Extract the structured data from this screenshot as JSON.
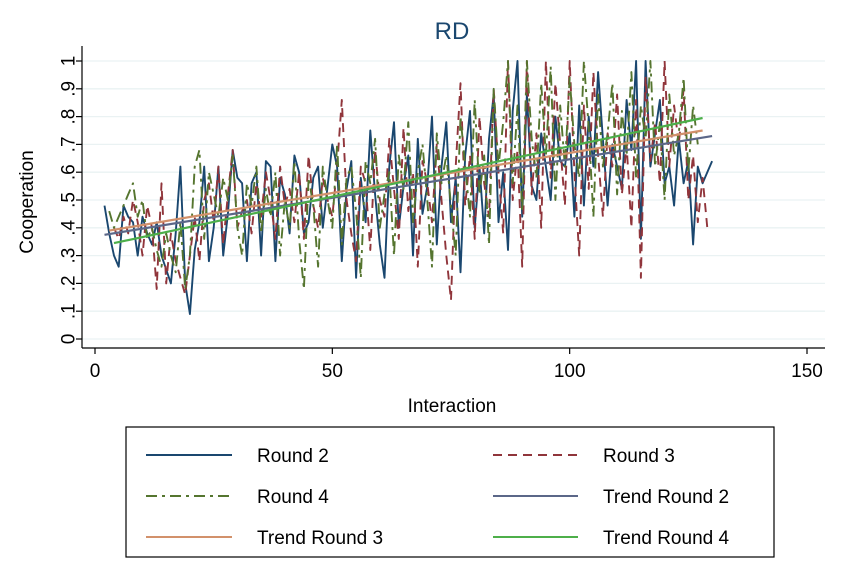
{
  "chart_data": {
    "type": "line",
    "title": "RD",
    "xlabel": "Interaction",
    "ylabel": "Cooperation",
    "xlim": [
      0,
      150
    ],
    "ylim": [
      0,
      1
    ],
    "x_ticks": [
      "0",
      "50",
      "100",
      "150"
    ],
    "y_ticks": [
      "0",
      ".1",
      ".2",
      ".3",
      ".4",
      ".5",
      ".6",
      ".7",
      ".8",
      ".9",
      "1"
    ],
    "grid": true,
    "legend_position": "bottom",
    "series": [
      {
        "name": "Round 2",
        "color": "#1a476f",
        "style": "solid",
        "x": [
          2,
          3,
          4,
          5,
          6,
          7,
          8,
          9,
          10,
          11,
          12,
          13,
          14,
          15,
          16,
          17,
          18,
          19,
          20,
          21,
          22,
          23,
          24,
          25,
          26,
          27,
          28,
          29,
          30,
          31,
          32,
          33,
          34,
          35,
          36,
          37,
          38,
          39,
          40,
          41,
          42,
          43,
          44,
          45,
          46,
          47,
          48,
          49,
          50,
          51,
          52,
          53,
          54,
          55,
          56,
          57,
          58,
          59,
          60,
          61,
          62,
          63,
          64,
          65,
          66,
          67,
          68,
          69,
          70,
          71,
          72,
          73,
          74,
          75,
          76,
          77,
          78,
          79,
          80,
          81,
          82,
          83,
          84,
          85,
          86,
          87,
          88,
          89,
          90,
          91,
          92,
          93,
          94,
          95,
          96,
          97,
          98,
          99,
          100,
          101,
          102,
          103,
          104,
          105,
          106,
          107,
          108,
          109,
          110,
          111,
          112,
          113,
          114,
          115,
          116,
          117,
          118,
          119,
          120,
          121,
          122,
          123,
          124,
          125,
          126,
          127,
          128,
          129,
          130
        ],
        "values": [
          0.48,
          0.38,
          0.3,
          0.26,
          0.48,
          0.44,
          0.42,
          0.3,
          0.44,
          0.38,
          0.34,
          0.42,
          0.3,
          0.25,
          0.2,
          0.38,
          0.62,
          0.2,
          0.09,
          0.32,
          0.42,
          0.62,
          0.28,
          0.4,
          0.62,
          0.3,
          0.45,
          0.68,
          0.58,
          0.56,
          0.28,
          0.56,
          0.6,
          0.3,
          0.64,
          0.62,
          0.28,
          0.58,
          0.52,
          0.38,
          0.66,
          0.6,
          0.38,
          0.42,
          0.58,
          0.62,
          0.4,
          0.55,
          0.7,
          0.62,
          0.28,
          0.54,
          0.64,
          0.22,
          0.58,
          0.42,
          0.75,
          0.52,
          0.34,
          0.22,
          0.62,
          0.78,
          0.4,
          0.55,
          0.66,
          0.3,
          0.72,
          0.45,
          0.55,
          0.8,
          0.34,
          0.62,
          0.78,
          0.42,
          0.58,
          0.24,
          0.66,
          0.82,
          0.4,
          0.62,
          0.38,
          0.72,
          0.88,
          0.42,
          0.6,
          0.32,
          0.82,
          1.0,
          0.44,
          0.88,
          0.55,
          0.5,
          0.74,
          0.62,
          0.5,
          0.8,
          0.64,
          0.62,
          0.74,
          0.44,
          0.84,
          0.48,
          0.8,
          0.62,
          0.96,
          0.72,
          0.48,
          0.7,
          0.62,
          0.54,
          0.86,
          0.68,
          1.0,
          0.36,
          1.0,
          0.62,
          0.74,
          0.86,
          0.56,
          0.62,
          0.48,
          0.72,
          0.56,
          0.64,
          0.34,
          0.62,
          0.56,
          0.6,
          0.64
        ]
      },
      {
        "name": "Round 3",
        "color": "#90353b",
        "style": "dash",
        "x": [
          4,
          5,
          6,
          7,
          8,
          9,
          10,
          11,
          12,
          13,
          14,
          15,
          16,
          17,
          18,
          19,
          20,
          21,
          22,
          23,
          24,
          25,
          26,
          27,
          28,
          29,
          30,
          31,
          32,
          33,
          34,
          35,
          36,
          37,
          38,
          39,
          40,
          41,
          42,
          43,
          44,
          45,
          46,
          47,
          48,
          49,
          50,
          51,
          52,
          53,
          54,
          55,
          56,
          57,
          58,
          59,
          60,
          61,
          62,
          63,
          64,
          65,
          66,
          67,
          68,
          69,
          70,
          71,
          72,
          73,
          74,
          75,
          76,
          77,
          78,
          79,
          80,
          81,
          82,
          83,
          84,
          85,
          86,
          87,
          88,
          89,
          90,
          91,
          92,
          93,
          94,
          95,
          96,
          97,
          98,
          99,
          100,
          101,
          102,
          103,
          104,
          105,
          106,
          107,
          108,
          109,
          110,
          111,
          112,
          113,
          114,
          115,
          116,
          117,
          118,
          119,
          120,
          121,
          122,
          123,
          124,
          125,
          126,
          127,
          128,
          129
        ],
        "values": [
          0.4,
          0.36,
          0.44,
          0.38,
          0.5,
          0.42,
          0.3,
          0.48,
          0.4,
          0.18,
          0.56,
          0.2,
          0.38,
          0.28,
          0.22,
          0.16,
          0.3,
          0.44,
          0.28,
          0.5,
          0.56,
          0.42,
          0.62,
          0.34,
          0.52,
          0.68,
          0.4,
          0.46,
          0.5,
          0.38,
          0.56,
          0.44,
          0.6,
          0.5,
          0.36,
          0.62,
          0.48,
          0.54,
          0.42,
          0.6,
          0.36,
          0.66,
          0.48,
          0.4,
          0.58,
          0.5,
          0.44,
          0.62,
          0.86,
          0.5,
          0.38,
          0.28,
          0.62,
          0.56,
          0.32,
          0.68,
          0.5,
          0.44,
          0.72,
          0.54,
          0.36,
          0.76,
          0.46,
          0.6,
          0.26,
          0.64,
          0.56,
          0.42,
          0.7,
          0.5,
          0.3,
          0.14,
          0.62,
          0.92,
          0.48,
          0.66,
          0.36,
          0.8,
          0.56,
          0.44,
          0.9,
          0.6,
          0.38,
          1.0,
          0.5,
          0.68,
          0.26,
          1.0,
          0.52,
          0.74,
          0.4,
          1.0,
          0.58,
          0.92,
          0.7,
          0.48,
          1.0,
          0.6,
          0.3,
          0.84,
          0.54,
          0.96,
          0.66,
          0.44,
          0.74,
          0.62,
          0.88,
          0.52,
          0.7,
          0.4,
          0.86,
          0.22,
          0.94,
          0.64,
          0.78,
          0.56,
          1.0,
          0.62,
          0.84,
          0.7,
          0.9,
          0.5,
          0.66,
          0.42,
          0.58,
          0.4
        ]
      },
      {
        "name": "Round 4",
        "color": "#55752f",
        "style": "dashdot",
        "x": [
          3,
          4,
          5,
          6,
          7,
          8,
          9,
          10,
          11,
          12,
          13,
          14,
          15,
          16,
          17,
          18,
          19,
          20,
          21,
          22,
          23,
          24,
          25,
          26,
          27,
          28,
          29,
          30,
          31,
          32,
          33,
          34,
          35,
          36,
          37,
          38,
          39,
          40,
          41,
          42,
          43,
          44,
          45,
          46,
          47,
          48,
          49,
          50,
          51,
          52,
          53,
          54,
          55,
          56,
          57,
          58,
          59,
          60,
          61,
          62,
          63,
          64,
          65,
          66,
          67,
          68,
          69,
          70,
          71,
          72,
          73,
          74,
          75,
          76,
          77,
          78,
          79,
          80,
          81,
          82,
          83,
          84,
          85,
          86,
          87,
          88,
          89,
          90,
          91,
          92,
          93,
          94,
          95,
          96,
          97,
          98,
          99,
          100,
          101,
          102,
          103,
          104,
          105,
          106,
          107,
          108,
          109,
          110,
          111,
          112,
          113,
          114,
          115,
          116,
          117,
          118,
          119,
          120,
          121,
          122,
          123,
          124,
          125,
          126,
          127
        ],
        "values": [
          0.46,
          0.4,
          0.44,
          0.48,
          0.52,
          0.56,
          0.44,
          0.5,
          0.36,
          0.4,
          0.32,
          0.26,
          0.38,
          0.3,
          0.24,
          0.42,
          0.18,
          0.3,
          0.62,
          0.68,
          0.36,
          0.6,
          0.52,
          0.44,
          0.58,
          0.5,
          0.66,
          0.4,
          0.3,
          0.56,
          0.48,
          0.62,
          0.38,
          0.54,
          0.44,
          0.6,
          0.3,
          0.5,
          0.4,
          0.64,
          0.36,
          0.18,
          0.58,
          0.48,
          0.26,
          0.62,
          0.5,
          0.4,
          0.7,
          0.34,
          0.58,
          0.62,
          0.46,
          0.22,
          0.64,
          0.56,
          0.72,
          0.4,
          0.52,
          0.6,
          0.3,
          0.66,
          0.54,
          0.78,
          0.42,
          0.6,
          0.7,
          0.5,
          0.26,
          0.74,
          0.56,
          0.66,
          0.48,
          0.3,
          0.8,
          0.62,
          0.44,
          0.86,
          0.52,
          0.66,
          0.34,
          0.9,
          0.62,
          0.78,
          1.0,
          0.56,
          0.84,
          0.46,
          1.0,
          0.72,
          0.58,
          0.92,
          0.66,
          0.98,
          0.5,
          0.84,
          0.62,
          0.94,
          0.7,
          0.58,
          1.0,
          0.76,
          0.44,
          0.88,
          0.62,
          0.74,
          0.92,
          0.52,
          0.82,
          0.66,
          0.96,
          0.58,
          0.84,
          0.72,
          1.0,
          0.62,
          0.78,
          0.5,
          0.88,
          0.66,
          0.74,
          0.94,
          0.6,
          0.84,
          0.7
        ]
      },
      {
        "name": "Trend Round 2",
        "color": "#5b6788",
        "style": "solid",
        "x": [
          2,
          130
        ],
        "values": [
          0.375,
          0.73
        ]
      },
      {
        "name": "Trend Round 3",
        "color": "#d2916b",
        "style": "solid",
        "x": [
          3,
          128
        ],
        "values": [
          0.39,
          0.75
        ]
      },
      {
        "name": "Trend Round 4",
        "color": "#4daf4a",
        "style": "solid",
        "x": [
          4,
          128
        ],
        "values": [
          0.345,
          0.795
        ]
      }
    ]
  }
}
